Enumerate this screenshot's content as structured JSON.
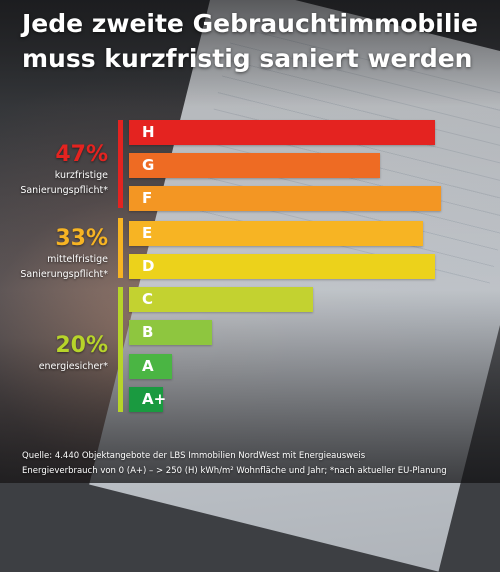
{
  "title_lines": [
    "Jede zweite Gebrauchtimmobilie",
    "muss kurzfristig saniert werden"
  ],
  "chart_data": {
    "type": "bar",
    "orientation": "horizontal",
    "categories": [
      "H",
      "G",
      "F",
      "E",
      "D",
      "C",
      "B",
      "A",
      "A+"
    ],
    "values": [
      100,
      82,
      102,
      96,
      100,
      60,
      27,
      14,
      11
    ],
    "value_unit": "relative bar length (no axis shown)",
    "colors": [
      "#e42320",
      "#ee6b23",
      "#f39623",
      "#f7b423",
      "#ecd21b",
      "#c3d230",
      "#8ec63f",
      "#4ab543",
      "#1a9a40"
    ],
    "groups": [
      {
        "percent": "47%",
        "line1": "kurzfristige",
        "line2": "Sanierungspflicht*",
        "categories": [
          "H",
          "G",
          "F"
        ],
        "color": "#e42320"
      },
      {
        "percent": "33%",
        "line1": "mittelfristige",
        "line2": "Sanierungspflicht*",
        "categories": [
          "E",
          "D"
        ],
        "color": "#f7b423"
      },
      {
        "percent": "20%",
        "line1": "energiesicher*",
        "line2": "",
        "categories": [
          "C",
          "B",
          "A",
          "A+"
        ],
        "color": "#b7d42a"
      }
    ]
  },
  "source_lines": [
    "Quelle: 4.440 Objektangebote der LBS Immobilien NordWest mit Energieausweis",
    "Energieverbrauch von 0 (A+) – > 250 (H) kWh/m² Wohnfläche und Jahr; *nach aktueller EU-Planung"
  ]
}
